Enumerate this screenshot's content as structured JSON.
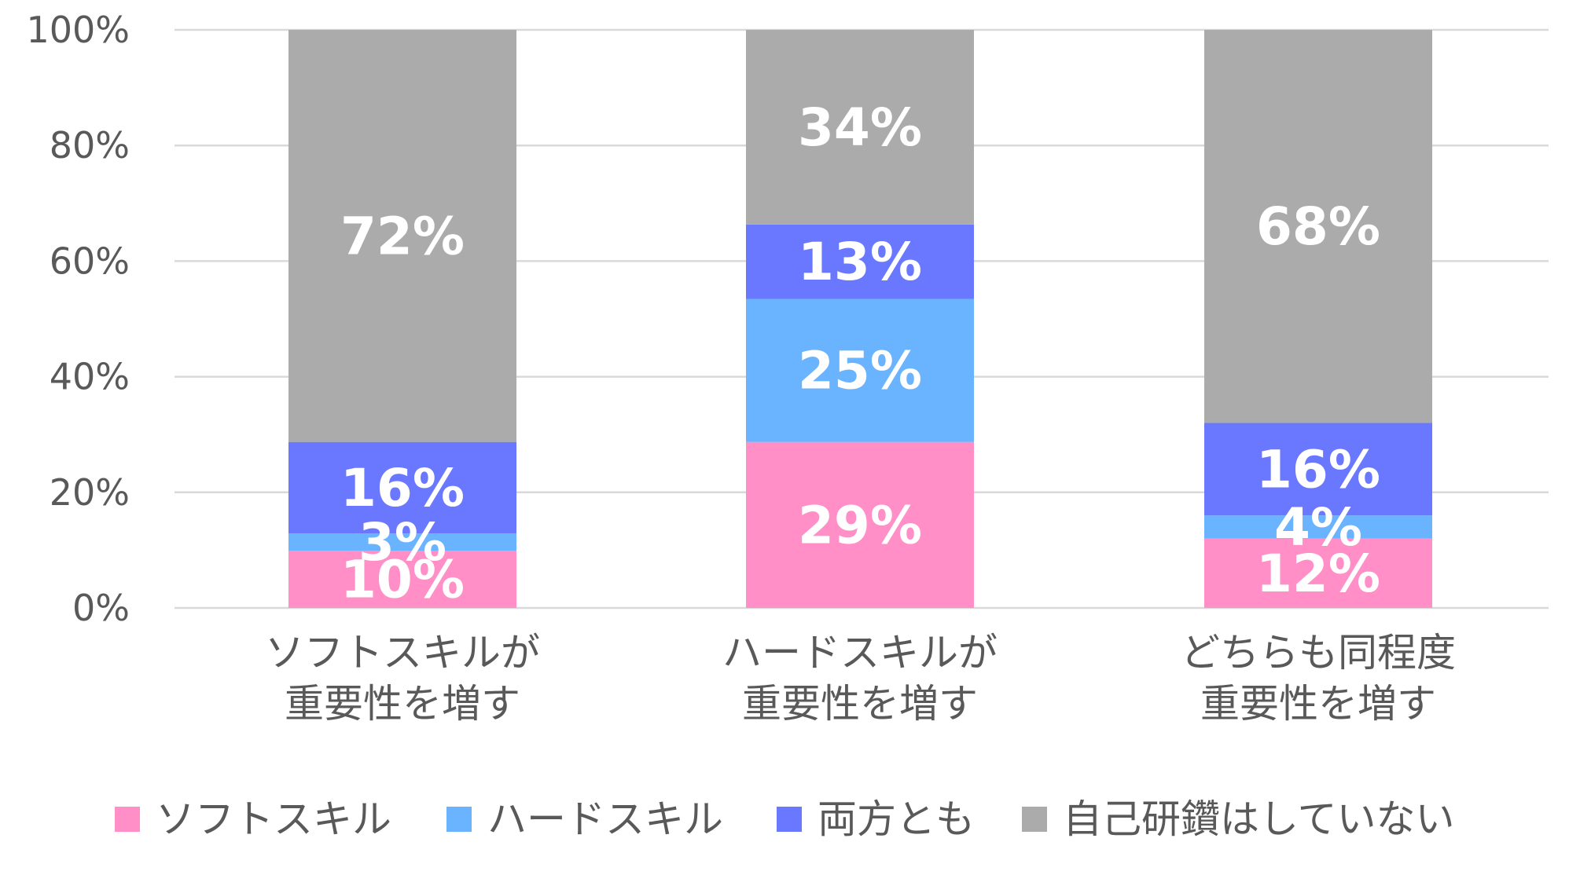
{
  "chart_data": {
    "type": "stacked-bar",
    "title": "",
    "xlabel": "",
    "ylabel": "",
    "ylim": [
      0,
      100
    ],
    "yticks": [
      "0%",
      "20%",
      "40%",
      "60%",
      "80%",
      "100%"
    ],
    "categories": [
      [
        "ソフトスキルが",
        "重要性を増す"
      ],
      [
        "ハードスキルが",
        "重要性を増す"
      ],
      [
        "どちらも同程度",
        "重要性を増す"
      ]
    ],
    "series": [
      {
        "name": "ソフトスキル",
        "color": "#ff8fc6",
        "values": [
          10,
          29,
          12
        ],
        "labels": [
          "10%",
          "29%",
          "12%"
        ]
      },
      {
        "name": "ハードスキル",
        "color": "#6ab4ff",
        "values": [
          3,
          25,
          4
        ],
        "labels": [
          "3%",
          "25%",
          "4%"
        ]
      },
      {
        "name": "両方とも",
        "color": "#6a78ff",
        "values": [
          16,
          13,
          16
        ],
        "labels": [
          "16%",
          "13%",
          "16%"
        ]
      },
      {
        "name": "自己研鑽はしていない",
        "color": "#ababab",
        "values": [
          72,
          34,
          68
        ],
        "labels": [
          "72%",
          "34%",
          "68%"
        ]
      }
    ],
    "grid": true,
    "legend_position": "bottom"
  }
}
